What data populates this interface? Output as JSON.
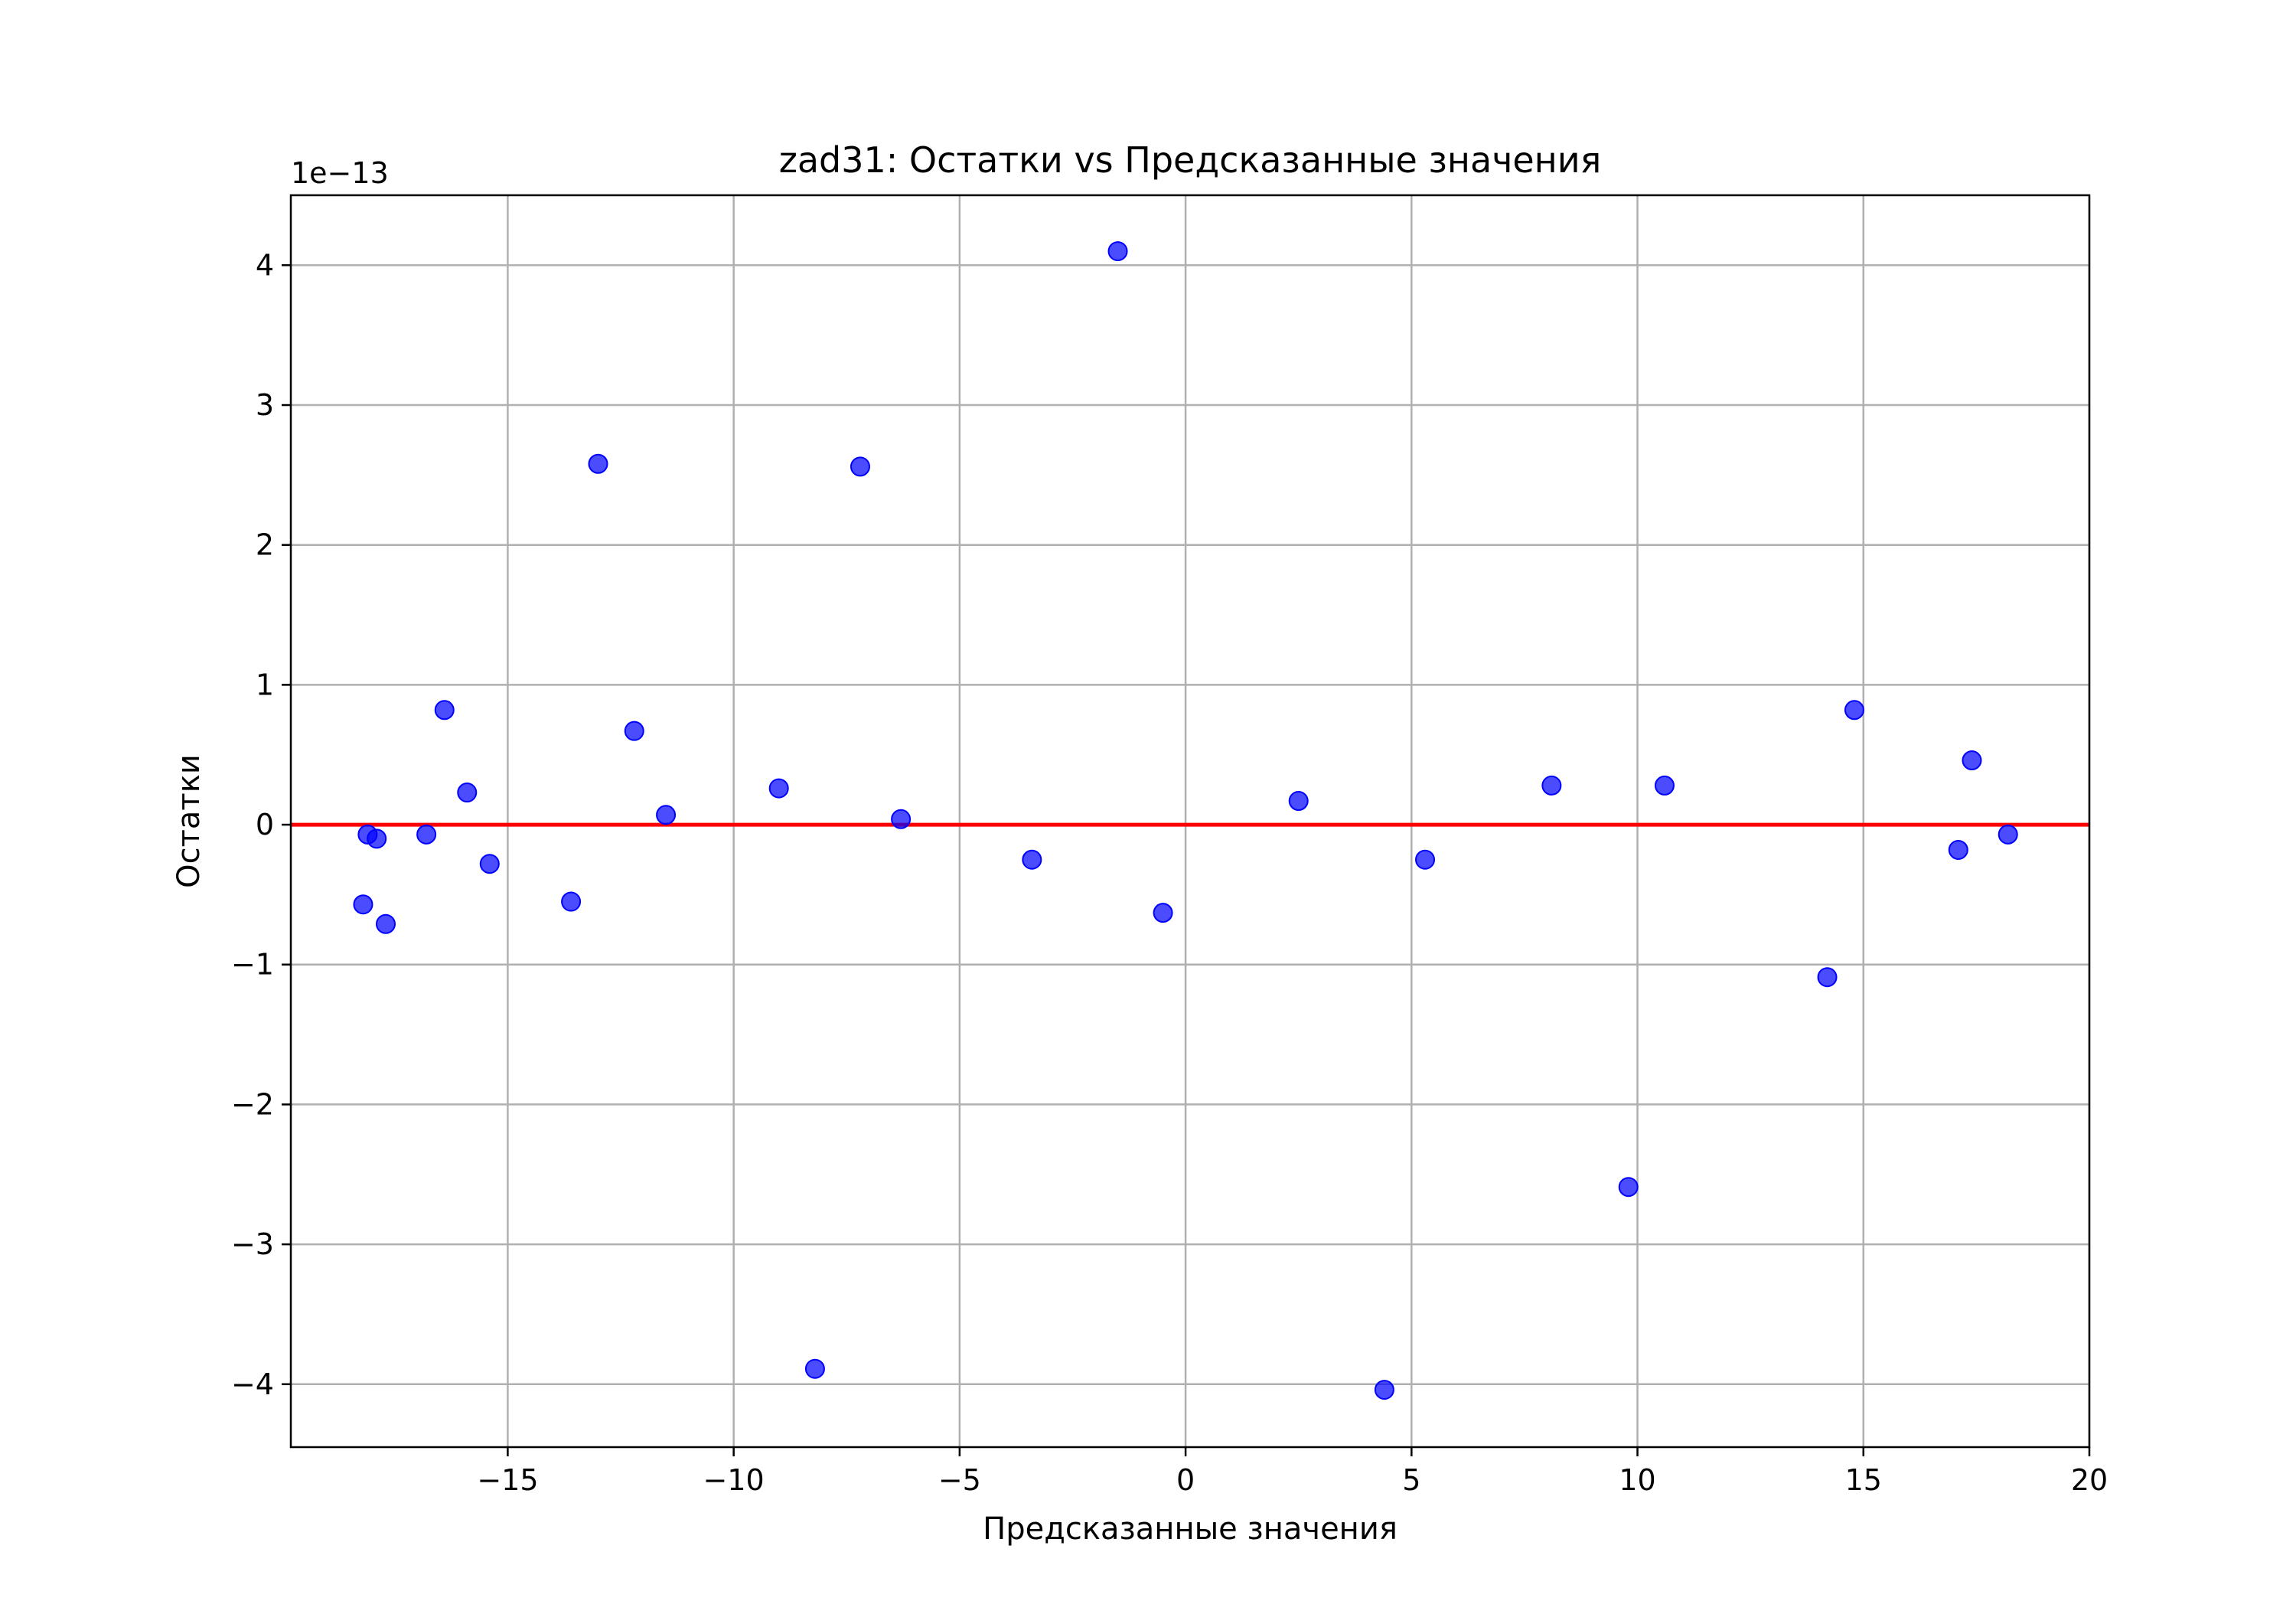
{
  "chart_data": {
    "type": "scatter",
    "title": "zad31: Остатки vs Предсказанные значения",
    "xlabel": "Предсказанные значения",
    "ylabel": "Остатки",
    "y_offset_label": "1e−13",
    "y_scale_factor": 1e-13,
    "xlim": [
      -19.8,
      20
    ],
    "ylim": [
      -4.45,
      4.5
    ],
    "xticks": [
      -15,
      -10,
      -5,
      0,
      5,
      10,
      15,
      20
    ],
    "xtick_labels": [
      "−15",
      "−10",
      "−5",
      "0",
      "5",
      "10",
      "15",
      "20"
    ],
    "yticks": [
      -4,
      -3,
      -2,
      -1,
      0,
      1,
      2,
      3,
      4
    ],
    "ytick_labels": [
      "−4",
      "−3",
      "−2",
      "−1",
      "0",
      "1",
      "2",
      "3",
      "4"
    ],
    "grid": true,
    "reference_line": {
      "y": 0,
      "color": "#ff0000"
    },
    "point_color": "#0000ff",
    "series": [
      {
        "points": [
          [
            -18.2,
            -0.57
          ],
          [
            -18.1,
            -0.07
          ],
          [
            -17.9,
            -0.1
          ],
          [
            -17.7,
            -0.71
          ],
          [
            -16.8,
            -0.07
          ],
          [
            -16.4,
            0.82
          ],
          [
            -15.9,
            0.23
          ],
          [
            -15.4,
            -0.28
          ],
          [
            -13.6,
            -0.55
          ],
          [
            -13.0,
            2.58
          ],
          [
            -12.2,
            0.67
          ],
          [
            -11.5,
            0.07
          ],
          [
            -9.0,
            0.26
          ],
          [
            -8.2,
            -3.89
          ],
          [
            -7.2,
            2.56
          ],
          [
            -6.3,
            0.04
          ],
          [
            -3.4,
            -0.25
          ],
          [
            -1.5,
            4.1
          ],
          [
            -0.5,
            -0.63
          ],
          [
            2.5,
            0.17
          ],
          [
            4.4,
            -4.04
          ],
          [
            5.3,
            -0.25
          ],
          [
            8.1,
            0.28
          ],
          [
            9.8,
            -2.59
          ],
          [
            10.6,
            0.28
          ],
          [
            14.2,
            -1.09
          ],
          [
            14.8,
            0.82
          ],
          [
            17.1,
            -0.18
          ],
          [
            17.4,
            0.46
          ],
          [
            18.2,
            -0.07
          ]
        ]
      }
    ]
  }
}
